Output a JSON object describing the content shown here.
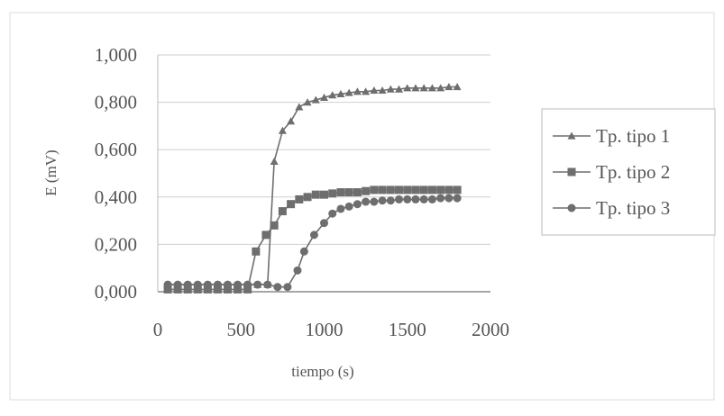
{
  "chart_data": {
    "type": "line",
    "title": "",
    "xlabel": "tiempo (s)",
    "ylabel": "E (mV)",
    "xlim": [
      0,
      2000
    ],
    "ylim": [
      0,
      1.0
    ],
    "xticks": [
      "0",
      "500",
      "1000",
      "1500",
      "2000"
    ],
    "yticks": [
      "0,000",
      "0,200",
      "0,400",
      "0,600",
      "0,800",
      "1,000"
    ],
    "grid": "horizontal",
    "legend_position": "right",
    "series": [
      {
        "name": "Tp. tipo 1",
        "marker": "triangle",
        "x": [
          60,
          120,
          180,
          240,
          300,
          360,
          420,
          480,
          540,
          600,
          660,
          700,
          750,
          800,
          850,
          900,
          950,
          1000,
          1050,
          1100,
          1150,
          1200,
          1250,
          1300,
          1350,
          1400,
          1450,
          1500,
          1550,
          1600,
          1650,
          1700,
          1750,
          1800
        ],
        "y": [
          0.03,
          0.03,
          0.03,
          0.03,
          0.03,
          0.03,
          0.03,
          0.03,
          0.03,
          0.03,
          0.03,
          0.55,
          0.68,
          0.72,
          0.78,
          0.8,
          0.81,
          0.82,
          0.83,
          0.835,
          0.84,
          0.845,
          0.845,
          0.85,
          0.85,
          0.855,
          0.855,
          0.86,
          0.86,
          0.86,
          0.86,
          0.86,
          0.865,
          0.865
        ]
      },
      {
        "name": "Tp. tipo 2",
        "marker": "square",
        "x": [
          60,
          120,
          180,
          240,
          300,
          360,
          420,
          480,
          540,
          590,
          650,
          700,
          750,
          800,
          850,
          900,
          950,
          1000,
          1050,
          1100,
          1150,
          1200,
          1250,
          1300,
          1350,
          1400,
          1450,
          1500,
          1550,
          1600,
          1650,
          1700,
          1750,
          1800
        ],
        "y": [
          0.01,
          0.01,
          0.01,
          0.01,
          0.01,
          0.01,
          0.01,
          0.01,
          0.01,
          0.17,
          0.24,
          0.28,
          0.34,
          0.37,
          0.39,
          0.4,
          0.41,
          0.41,
          0.415,
          0.42,
          0.42,
          0.42,
          0.425,
          0.43,
          0.43,
          0.43,
          0.43,
          0.43,
          0.43,
          0.43,
          0.43,
          0.43,
          0.43,
          0.43
        ]
      },
      {
        "name": "Tp. tipo 3",
        "marker": "circle",
        "x": [
          60,
          120,
          180,
          240,
          300,
          360,
          420,
          480,
          540,
          600,
          660,
          720,
          780,
          840,
          880,
          940,
          1000,
          1050,
          1100,
          1150,
          1200,
          1250,
          1300,
          1350,
          1400,
          1450,
          1500,
          1550,
          1600,
          1650,
          1700,
          1750,
          1800
        ],
        "y": [
          0.03,
          0.03,
          0.03,
          0.03,
          0.03,
          0.03,
          0.03,
          0.03,
          0.03,
          0.03,
          0.03,
          0.02,
          0.02,
          0.09,
          0.17,
          0.24,
          0.29,
          0.33,
          0.35,
          0.36,
          0.37,
          0.38,
          0.38,
          0.385,
          0.385,
          0.39,
          0.39,
          0.39,
          0.39,
          0.39,
          0.395,
          0.395,
          0.395
        ]
      }
    ]
  }
}
